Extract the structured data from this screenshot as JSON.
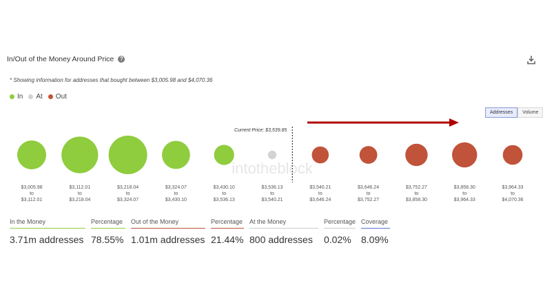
{
  "header": {
    "title": "In/Out of the Money Around Price",
    "help_icon": "question-icon",
    "download_icon": "download-icon"
  },
  "note": "* Showing information for addresses that bought between $3,005.98 and $4,070.36",
  "legend": [
    {
      "label": "In",
      "color": "#8fcc3e"
    },
    {
      "label": "At",
      "color": "#d3d3d3"
    },
    {
      "label": "Out",
      "color": "#c0533a"
    }
  ],
  "toggle": {
    "addresses_label": "Addresses",
    "volume_label": "Volume",
    "selected": "Addresses"
  },
  "arrow_color": "#b00000",
  "watermark": "intotheblock",
  "chart_data": {
    "type": "bubble",
    "current_price_label": "Current Price: $3,539.85",
    "current_price": 3539.85,
    "bins": [
      {
        "from": "$3,005.98",
        "to": "$3,112.01",
        "status": "in",
        "size": 0.75
      },
      {
        "from": "$3,112.01",
        "to": "$3,218.04",
        "status": "in",
        "size": 0.95
      },
      {
        "from": "$3,218.04",
        "to": "$3,324.07",
        "status": "in",
        "size": 1.0
      },
      {
        "from": "$3,324.07",
        "to": "$3,430.10",
        "status": "in",
        "size": 0.73
      },
      {
        "from": "$3,430.10",
        "to": "$3,536.13",
        "status": "in",
        "size": 0.52
      },
      {
        "from": "$3,536.13",
        "to": "$3,540.21",
        "status": "at",
        "size": 0.22
      },
      {
        "from": "$3,540.21",
        "to": "$3,646.24",
        "status": "out",
        "size": 0.44
      },
      {
        "from": "$3,646.24",
        "to": "$3,752.27",
        "status": "out",
        "size": 0.46
      },
      {
        "from": "$3,752.27",
        "to": "$3,858.30",
        "status": "out",
        "size": 0.58
      },
      {
        "from": "$3,858.30",
        "to": "$3,964.33",
        "status": "out",
        "size": 0.65
      },
      {
        "from": "$3,964.33",
        "to": "$4,070.36",
        "status": "out",
        "size": 0.51
      }
    ],
    "to_word": "to",
    "colors": {
      "in": "#8fcc3e",
      "at": "#d3d3d3",
      "out": "#c0533a"
    }
  },
  "stats": [
    {
      "label": "In the Money",
      "value": "3.71m addresses",
      "color": "#8fcc3e"
    },
    {
      "label": "Percentage",
      "value": "78.55%",
      "color": "#8fcc3e"
    },
    {
      "label": "Out of the Money",
      "value": "1.01m addresses",
      "color": "#c0533a"
    },
    {
      "label": "Percentage",
      "value": "21.44%",
      "color": "#c0533a"
    },
    {
      "label": "At the Money",
      "value": "800 addresses",
      "color": "#cccccc"
    },
    {
      "label": "Percentage",
      "value": "0.02%",
      "color": "#cccccc"
    },
    {
      "label": "Coverage",
      "value": "8.09%",
      "color": "#5a6fd6"
    }
  ]
}
